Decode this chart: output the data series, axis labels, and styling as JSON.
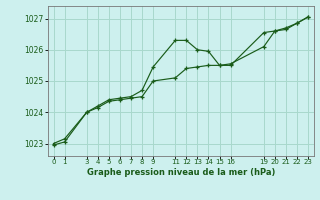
{
  "bg_color": "#cdf0ee",
  "grid_color": "#a8d8cc",
  "line_color": "#1a5c1a",
  "xlabel": "Graphe pression niveau de la mer (hPa)",
  "xlabel_color": "#1a5c1a",
  "ylabel_color": "#1a5c1a",
  "xlim": [
    -0.5,
    23.5
  ],
  "ylim": [
    1022.6,
    1027.4
  ],
  "yticks": [
    1023,
    1024,
    1025,
    1026,
    1027
  ],
  "xticks": [
    0,
    1,
    3,
    4,
    5,
    6,
    7,
    8,
    9,
    11,
    12,
    13,
    14,
    15,
    16,
    19,
    20,
    21,
    22,
    23
  ],
  "series1_x": [
    0,
    1,
    3,
    4,
    5,
    6,
    7,
    8,
    9,
    11,
    12,
    13,
    14,
    15,
    16,
    19,
    20,
    21,
    22,
    23
  ],
  "series1_y": [
    1023.0,
    1023.15,
    1024.0,
    1024.2,
    1024.4,
    1024.45,
    1024.5,
    1024.7,
    1025.45,
    1026.3,
    1026.3,
    1026.0,
    1025.95,
    1025.5,
    1025.5,
    1026.55,
    1026.6,
    1026.7,
    1026.85,
    1027.05
  ],
  "series2_x": [
    0,
    1,
    3,
    4,
    5,
    6,
    7,
    8,
    9,
    11,
    12,
    13,
    14,
    15,
    16,
    19,
    20,
    21,
    22,
    23
  ],
  "series2_y": [
    1022.95,
    1023.05,
    1024.0,
    1024.15,
    1024.35,
    1024.4,
    1024.45,
    1024.5,
    1025.0,
    1025.1,
    1025.4,
    1025.45,
    1025.5,
    1025.5,
    1025.55,
    1026.1,
    1026.6,
    1026.65,
    1026.85,
    1027.05
  ]
}
